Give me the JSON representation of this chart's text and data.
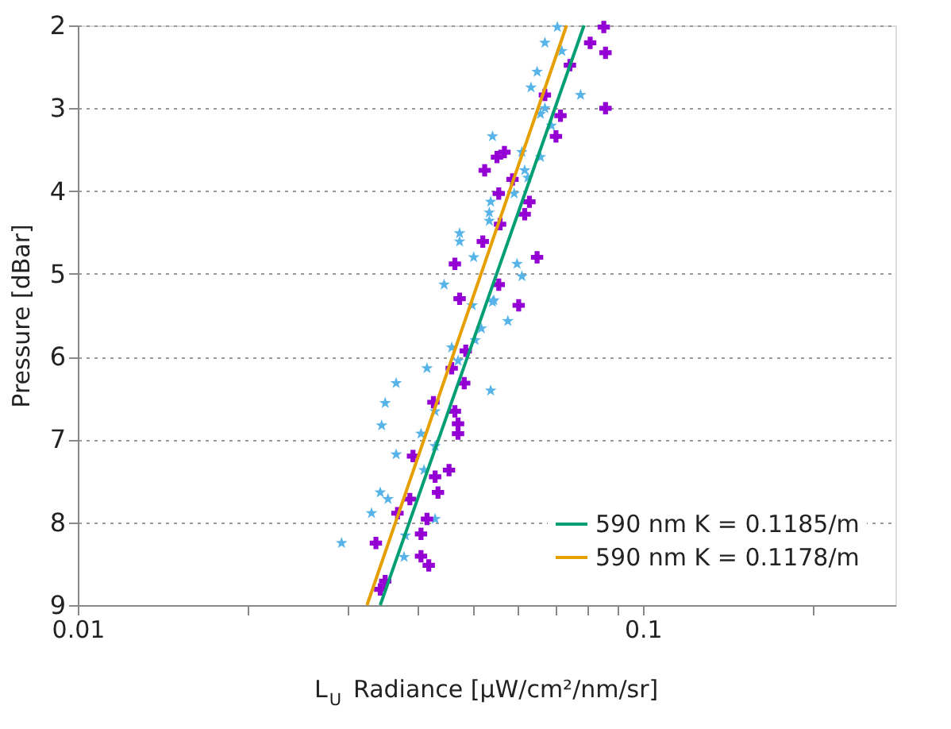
{
  "chart_data": {
    "type": "scatter",
    "xlabel": "L$_{U}$ Radiance [μW/cm²/nm/sr]",
    "ylabel": "Pressure [dBar]",
    "log": "x",
    "xlim": [
      0.01,
      0.28
    ],
    "ylim": [
      9,
      2
    ],
    "xticks": [
      0.01,
      {
        "value": 0.02,
        "label": null
      },
      {
        "value": 0.03,
        "label": null
      },
      {
        "value": 0.04,
        "label": null
      },
      {
        "value": 0.05,
        "label": null
      },
      {
        "value": 0.06,
        "label": null
      },
      {
        "value": 0.07,
        "label": null
      },
      {
        "value": 0.08,
        "label": null
      },
      {
        "value": 0.09,
        "label": null
      },
      0.1,
      {
        "value": 0.2,
        "label": null
      }
    ],
    "yticks": [
      2,
      3,
      4,
      5,
      6,
      7,
      8,
      9
    ],
    "grid": "y",
    "legend": "bottom right",
    "series": [
      {
        "marker": "star",
        "color": "#56b4e9",
        "x": [
          0.0706,
          0.0671,
          0.0719,
          0.065,
          0.0634,
          0.0776,
          0.0671,
          0.0659,
          0.0689,
          0.0542,
          0.0611,
          0.0659,
          0.0618,
          0.0626,
          0.0592,
          0.0538,
          0.0535,
          0.0535,
          0.0474,
          0.0474,
          0.0502,
          0.0599,
          0.0611,
          0.0445,
          0.0542,
          0.0499,
          0.0545,
          0.0577,
          0.0518,
          0.0505,
          0.0459,
          0.0471,
          0.0415,
          0.0538,
          0.0366,
          0.035,
          0.0345,
          0.0429,
          0.0405,
          0.0366,
          0.0429,
          0.041,
          0.0343,
          0.0354,
          0.0331,
          0.0429,
          0.038,
          0.0293,
          0.0378
        ],
        "values": [
          2.02,
          2.21,
          2.31,
          2.56,
          2.75,
          2.84,
          3.0,
          3.07,
          3.21,
          3.34,
          3.53,
          3.59,
          3.75,
          3.84,
          4.03,
          4.13,
          4.26,
          4.36,
          4.51,
          4.61,
          4.8,
          4.88,
          5.03,
          5.13,
          5.34,
          5.38,
          5.32,
          5.57,
          5.66,
          5.8,
          5.89,
          6.05,
          6.14,
          6.41,
          6.32,
          6.56,
          6.83,
          6.66,
          6.93,
          7.18,
          7.08,
          7.37,
          7.64,
          7.72,
          7.89,
          7.96,
          8.16,
          8.25,
          8.42
        ]
      },
      {
        "marker": "cross",
        "color": "#9400d3",
        "x": [
          0.0853,
          0.0807,
          0.0859,
          0.0743,
          0.0671,
          0.0859,
          0.0715,
          0.0702,
          0.0569,
          0.0552,
          0.0525,
          0.0588,
          0.0556,
          0.063,
          0.0618,
          0.0559,
          0.0521,
          0.0465,
          0.065,
          0.0556,
          0.0474,
          0.0603,
          0.0486,
          0.0459,
          0.0483,
          0.0426,
          0.0465,
          0.0471,
          0.0471,
          0.0392,
          0.0454,
          0.0429,
          0.0434,
          0.0387,
          0.0368,
          0.0415,
          0.0337,
          0.0405,
          0.0405,
          0.0418,
          0.035,
          0.0343
        ],
        "values": [
          2.02,
          2.21,
          2.33,
          2.48,
          2.84,
          3.0,
          3.09,
          3.34,
          3.53,
          3.59,
          3.75,
          3.86,
          4.03,
          4.13,
          4.28,
          4.4,
          4.61,
          4.88,
          4.8,
          5.13,
          5.3,
          5.38,
          5.93,
          6.14,
          6.32,
          6.55,
          6.66,
          6.81,
          6.93,
          7.2,
          7.37,
          7.45,
          7.64,
          7.72,
          7.89,
          7.96,
          8.25,
          8.14,
          8.41,
          8.52,
          8.71,
          8.81
        ]
      },
      {
        "type": "line",
        "name": "590 nm K = 0.1185/m",
        "color": "#009e73",
        "x": [
          0.0343,
          0.0787
        ],
        "values": [
          9,
          2
        ]
      },
      {
        "type": "line",
        "name": "590 nm K = 0.1178/m",
        "color": "#e69f00",
        "x": [
          0.0325,
          0.0733
        ],
        "values": [
          9,
          2
        ]
      }
    ]
  }
}
